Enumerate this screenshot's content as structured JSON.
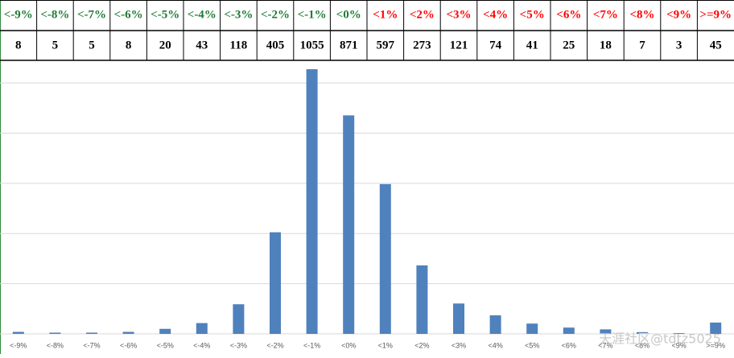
{
  "chart_data": {
    "type": "bar",
    "categories": [
      "<-9%",
      "<-8%",
      "<-7%",
      "<-6%",
      "<-5%",
      "<-4%",
      "<-3%",
      "<-2%",
      "<-1%",
      "<0%",
      "<1%",
      "<2%",
      "<3%",
      "<4%",
      "<5%",
      "<6%",
      "<7%",
      "<8%",
      "<9%",
      ">=9%"
    ],
    "values": [
      8,
      5,
      5,
      8,
      20,
      43,
      118,
      405,
      1055,
      871,
      597,
      273,
      121,
      74,
      41,
      25,
      18,
      7,
      3,
      45
    ],
    "header_colors": [
      "#1e7b34",
      "#1e7b34",
      "#1e7b34",
      "#1e7b34",
      "#1e7b34",
      "#1e7b34",
      "#1e7b34",
      "#1e7b34",
      "#1e7b34",
      "#1e7b34",
      "#ff0000",
      "#ff0000",
      "#ff0000",
      "#ff0000",
      "#ff0000",
      "#ff0000",
      "#ff0000",
      "#ff0000",
      "#ff0000",
      "#ff0000"
    ],
    "color": "#4f81bd",
    "ylim": [
      0,
      1100
    ],
    "yticks": [
      0,
      200,
      400,
      600,
      800,
      1000
    ],
    "grid": true,
    "watermark": "天涯社区@tdtz5025"
  }
}
